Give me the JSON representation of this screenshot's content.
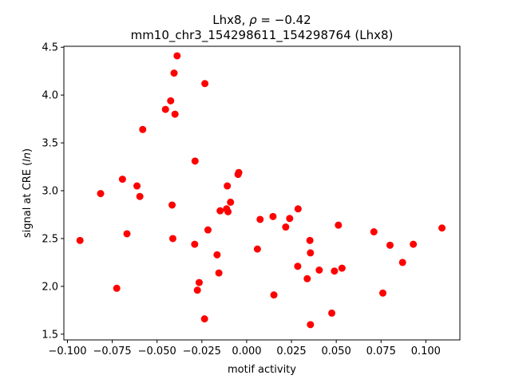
{
  "chart_data": {
    "type": "scatter",
    "title": {
      "prefix": "Lhx8, ",
      "rho_symbol": "ρ",
      "rho_value": " = −0.42",
      "line2": "mm10_chr3_154298611_154298764 (Lhx8)"
    },
    "xlabel": "motif activity",
    "ylabel": {
      "prefix": "signal at CRE (",
      "italic": "ln",
      "suffix": ")"
    },
    "xlim": [
      -0.102,
      0.119
    ],
    "ylim": [
      1.44,
      4.51
    ],
    "xticks": [
      {
        "value": -0.1,
        "label": "−0.100"
      },
      {
        "value": -0.075,
        "label": "−0.075"
      },
      {
        "value": -0.05,
        "label": "−0.050"
      },
      {
        "value": -0.025,
        "label": "−0.025"
      },
      {
        "value": 0.0,
        "label": "0.000"
      },
      {
        "value": 0.025,
        "label": "0.025"
      },
      {
        "value": 0.05,
        "label": "0.050"
      },
      {
        "value": 0.075,
        "label": "0.075"
      },
      {
        "value": 0.1,
        "label": "0.100"
      }
    ],
    "yticks": [
      {
        "value": 1.5,
        "label": "1.5"
      },
      {
        "value": 2.0,
        "label": "2.0"
      },
      {
        "value": 2.5,
        "label": "2.5"
      },
      {
        "value": 3.0,
        "label": "3.0"
      },
      {
        "value": 3.5,
        "label": "3.5"
      },
      {
        "value": 4.0,
        "label": "4.0"
      },
      {
        "value": 4.5,
        "label": "4.5"
      }
    ],
    "grid": false,
    "legend": null,
    "marker_color": "#ff0000",
    "points": [
      {
        "x": -0.093,
        "y": 2.48
      },
      {
        "x": -0.0815,
        "y": 2.97
      },
      {
        "x": -0.0725,
        "y": 1.98
      },
      {
        "x": -0.0693,
        "y": 3.12
      },
      {
        "x": -0.0668,
        "y": 2.55
      },
      {
        "x": -0.0612,
        "y": 3.05
      },
      {
        "x": -0.0596,
        "y": 2.94
      },
      {
        "x": -0.058,
        "y": 3.64
      },
      {
        "x": -0.0453,
        "y": 3.85
      },
      {
        "x": -0.0424,
        "y": 3.94
      },
      {
        "x": -0.0416,
        "y": 2.85
      },
      {
        "x": -0.0412,
        "y": 2.5
      },
      {
        "x": -0.0405,
        "y": 4.23
      },
      {
        "x": -0.04,
        "y": 3.8
      },
      {
        "x": -0.0388,
        "y": 4.41
      },
      {
        "x": -0.029,
        "y": 2.44
      },
      {
        "x": -0.0288,
        "y": 3.31
      },
      {
        "x": -0.0275,
        "y": 1.96
      },
      {
        "x": -0.0265,
        "y": 2.04
      },
      {
        "x": -0.0235,
        "y": 1.66
      },
      {
        "x": -0.0233,
        "y": 4.12
      },
      {
        "x": -0.0216,
        "y": 2.59
      },
      {
        "x": -0.0165,
        "y": 2.33
      },
      {
        "x": -0.0155,
        "y": 2.14
      },
      {
        "x": -0.0148,
        "y": 2.79
      },
      {
        "x": -0.0112,
        "y": 2.81
      },
      {
        "x": -0.0108,
        "y": 3.05
      },
      {
        "x": -0.0104,
        "y": 2.78
      },
      {
        "x": -0.009,
        "y": 2.88
      },
      {
        "x": -0.0048,
        "y": 3.17
      },
      {
        "x": -0.0044,
        "y": 3.19
      },
      {
        "x": 0.006,
        "y": 2.39
      },
      {
        "x": 0.0075,
        "y": 2.7
      },
      {
        "x": 0.0147,
        "y": 2.73
      },
      {
        "x": 0.0152,
        "y": 1.91
      },
      {
        "x": 0.0218,
        "y": 2.62
      },
      {
        "x": 0.024,
        "y": 2.71
      },
      {
        "x": 0.0287,
        "y": 2.81
      },
      {
        "x": 0.0285,
        "y": 2.21
      },
      {
        "x": 0.0338,
        "y": 2.08
      },
      {
        "x": 0.0353,
        "y": 2.48
      },
      {
        "x": 0.0356,
        "y": 2.35
      },
      {
        "x": 0.0356,
        "y": 1.6
      },
      {
        "x": 0.0405,
        "y": 2.17
      },
      {
        "x": 0.0475,
        "y": 1.72
      },
      {
        "x": 0.049,
        "y": 2.16
      },
      {
        "x": 0.0512,
        "y": 2.64
      },
      {
        "x": 0.0532,
        "y": 2.19
      },
      {
        "x": 0.071,
        "y": 2.57
      },
      {
        "x": 0.076,
        "y": 1.93
      },
      {
        "x": 0.08,
        "y": 2.43
      },
      {
        "x": 0.087,
        "y": 2.25
      },
      {
        "x": 0.093,
        "y": 2.44
      },
      {
        "x": 0.109,
        "y": 2.61
      }
    ]
  }
}
